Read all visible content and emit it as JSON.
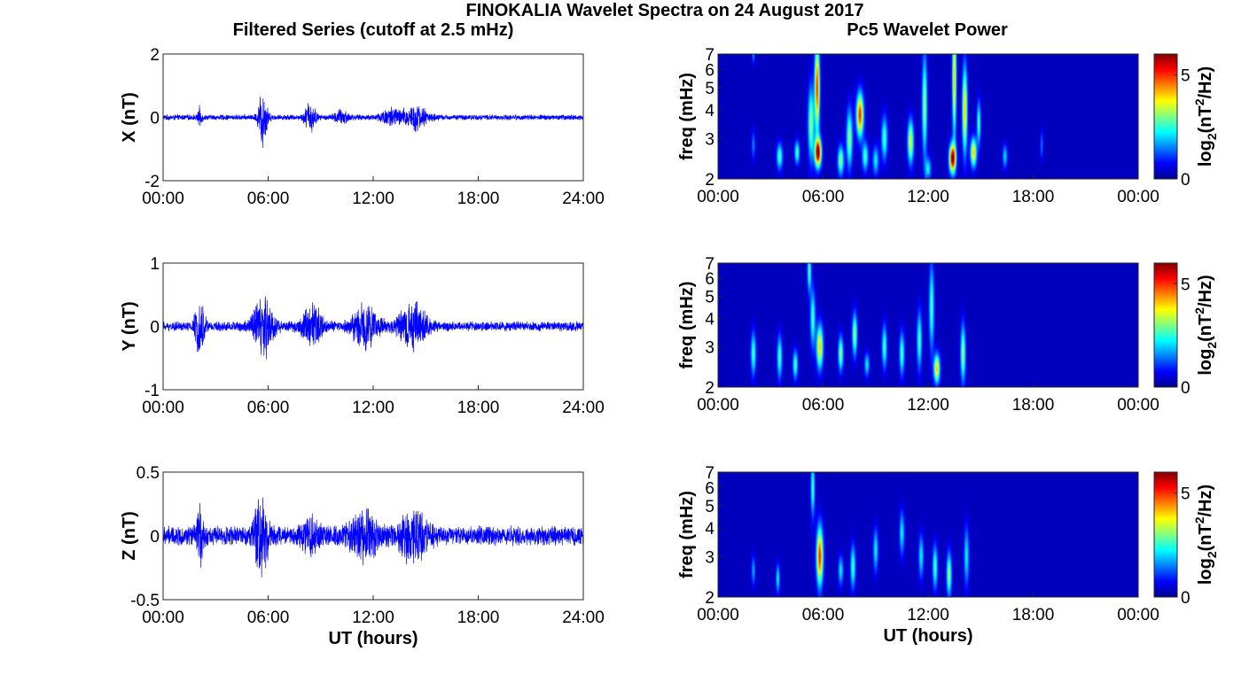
{
  "figure": {
    "title": "FINOKALIA Wavelet Spectra on 24 August 2017",
    "left_column_title": "Filtered Series (cutoff at 2.5 mHz)",
    "right_column_title": "Pc5 Wavelet Power"
  },
  "colors": {
    "trace": "#0000ff",
    "spectrum_background": "#00008f",
    "colormap": "jet"
  },
  "chart_data": [
    {
      "type": "line",
      "panel": "time-series-x",
      "xlabel": "",
      "ylabel": "X (nT)",
      "xlim": [
        0,
        24
      ],
      "ylim": [
        -2,
        2
      ],
      "xticks": [
        0,
        6,
        12,
        18,
        24
      ],
      "xtick_labels": [
        "00:00",
        "06:00",
        "12:00",
        "18:00",
        "24:00"
      ],
      "yticks": [
        2,
        0,
        -2
      ],
      "ytick_labels": [
        "2",
        "0",
        "-2"
      ],
      "noise_amplitude": 0.08,
      "bursts": [
        [
          2.1,
          0.12,
          0.25
        ],
        [
          5.7,
          0.25,
          0.9
        ],
        [
          8.4,
          0.3,
          0.45
        ],
        [
          10.2,
          0.4,
          0.2
        ],
        [
          13.0,
          0.6,
          0.25
        ],
        [
          14.4,
          0.7,
          0.35
        ]
      ]
    },
    {
      "type": "line",
      "panel": "time-series-y",
      "xlabel": "",
      "ylabel": "Y (nT)",
      "xlim": [
        0,
        24
      ],
      "ylim": [
        -1,
        1
      ],
      "xticks": [
        0,
        6,
        12,
        18,
        24
      ],
      "xtick_labels": [
        "00:00",
        "06:00",
        "12:00",
        "18:00",
        "24:00"
      ],
      "yticks": [
        1,
        0,
        -1
      ],
      "ytick_labels": [
        "1",
        "0",
        "-1"
      ],
      "noise_amplitude": 0.07,
      "bursts": [
        [
          2.1,
          0.3,
          0.35
        ],
        [
          5.7,
          0.6,
          0.45
        ],
        [
          8.5,
          0.6,
          0.3
        ],
        [
          11.5,
          0.8,
          0.3
        ],
        [
          14.3,
          0.8,
          0.32
        ]
      ]
    },
    {
      "type": "line",
      "panel": "time-series-z",
      "xlabel": "UT (hours)",
      "ylabel": "Z (nT)",
      "xlim": [
        0,
        24
      ],
      "ylim": [
        -0.5,
        0.5
      ],
      "xticks": [
        0,
        6,
        12,
        18,
        24
      ],
      "xtick_labels": [
        "00:00",
        "06:00",
        "12:00",
        "18:00",
        "24:00"
      ],
      "yticks": [
        0.5,
        0,
        -0.5
      ],
      "ytick_labels": [
        "0.5",
        "0",
        "-0.5"
      ],
      "noise_amplitude": 0.07,
      "bursts": [
        [
          2.1,
          0.2,
          0.18
        ],
        [
          5.6,
          0.4,
          0.3
        ],
        [
          8.4,
          0.5,
          0.12
        ],
        [
          11.5,
          0.8,
          0.14
        ],
        [
          14.3,
          0.8,
          0.16
        ]
      ]
    },
    {
      "type": "heatmap",
      "panel": "wavelet-power-x",
      "xlabel": "",
      "ylabel": "freq (mHz)",
      "xlim": [
        0,
        24
      ],
      "ylim": [
        2,
        7
      ],
      "yscale": "log",
      "xticks": [
        0,
        6,
        12,
        18,
        24
      ],
      "xtick_labels": [
        "00:00",
        "06:00",
        "12:00",
        "18:00",
        "00:00"
      ],
      "yticks": [
        2,
        3,
        4,
        5,
        6,
        7
      ],
      "ytick_labels": [
        "2",
        "3",
        "4",
        "5",
        "6",
        "7"
      ],
      "colorbar_label": "log2(nT^2/Hz)",
      "colorbar_range": [
        0,
        6
      ],
      "colorbar_ticks": [
        0,
        5
      ],
      "features": [
        [
          3.5,
          2.5,
          0.12,
          0.09,
          2.5
        ],
        [
          4.5,
          2.6,
          0.1,
          0.08,
          2.5
        ],
        [
          5.3,
          3.5,
          0.12,
          0.25,
          3.0
        ],
        [
          5.7,
          2.6,
          0.13,
          0.1,
          6.0
        ],
        [
          5.65,
          5.0,
          0.1,
          0.3,
          5.0
        ],
        [
          7.0,
          2.4,
          0.12,
          0.1,
          3.0
        ],
        [
          7.5,
          3.0,
          0.12,
          0.2,
          3.0
        ],
        [
          8.1,
          3.8,
          0.14,
          0.15,
          5.0
        ],
        [
          8.4,
          2.5,
          0.12,
          0.1,
          2.5
        ],
        [
          9.0,
          2.4,
          0.12,
          0.1,
          2.0
        ],
        [
          9.5,
          3.0,
          0.12,
          0.15,
          2.5
        ],
        [
          11.0,
          2.9,
          0.12,
          0.15,
          3.5
        ],
        [
          11.8,
          4.2,
          0.1,
          0.35,
          3.0
        ],
        [
          12.0,
          2.2,
          0.12,
          0.08,
          2.0
        ],
        [
          13.4,
          2.45,
          0.13,
          0.1,
          6.0
        ],
        [
          13.5,
          5.5,
          0.08,
          0.4,
          4.0
        ],
        [
          14.1,
          4.0,
          0.1,
          0.3,
          4.0
        ],
        [
          14.6,
          2.6,
          0.12,
          0.1,
          4.0
        ],
        [
          14.9,
          3.5,
          0.08,
          0.15,
          2.5
        ],
        [
          16.4,
          2.5,
          0.1,
          0.08,
          1.8
        ],
        [
          18.5,
          2.8,
          0.06,
          0.1,
          1.2
        ],
        [
          2.0,
          2.8,
          0.08,
          0.1,
          1.2
        ],
        [
          2.0,
          7.0,
          0.05,
          0.06,
          1.5
        ]
      ]
    },
    {
      "type": "heatmap",
      "panel": "wavelet-power-y",
      "xlabel": "",
      "ylabel": "freq (mHz)",
      "xlim": [
        0,
        24
      ],
      "ylim": [
        2,
        7
      ],
      "yscale": "log",
      "xticks": [
        0,
        6,
        12,
        18,
        24
      ],
      "xtick_labels": [
        "00:00",
        "06:00",
        "12:00",
        "18:00",
        "00:00"
      ],
      "yticks": [
        2,
        3,
        4,
        5,
        6,
        7
      ],
      "ytick_labels": [
        "2",
        "3",
        "4",
        "5",
        "6",
        "7"
      ],
      "colorbar_label": "log2(nT^2/Hz)",
      "colorbar_range": [
        0,
        6
      ],
      "colorbar_ticks": [
        0,
        5
      ],
      "features": [
        [
          2.0,
          2.8,
          0.1,
          0.15,
          2.5
        ],
        [
          3.5,
          2.7,
          0.1,
          0.15,
          2.5
        ],
        [
          4.4,
          2.5,
          0.1,
          0.1,
          2.5
        ],
        [
          5.2,
          6.5,
          0.08,
          0.15,
          2.5
        ],
        [
          5.4,
          4.0,
          0.1,
          0.2,
          2.5
        ],
        [
          5.8,
          3.0,
          0.13,
          0.15,
          4.0
        ],
        [
          7.0,
          2.8,
          0.1,
          0.12,
          3.0
        ],
        [
          7.8,
          3.4,
          0.1,
          0.15,
          3.0
        ],
        [
          8.5,
          2.5,
          0.1,
          0.08,
          2.0
        ],
        [
          9.5,
          3.0,
          0.1,
          0.15,
          2.5
        ],
        [
          10.5,
          2.8,
          0.1,
          0.15,
          2.5
        ],
        [
          11.5,
          3.2,
          0.1,
          0.2,
          2.5
        ],
        [
          12.2,
          4.5,
          0.1,
          0.3,
          2.5
        ],
        [
          12.5,
          2.4,
          0.12,
          0.1,
          4.0
        ],
        [
          14.0,
          2.8,
          0.1,
          0.2,
          3.0
        ]
      ]
    },
    {
      "type": "heatmap",
      "panel": "wavelet-power-z",
      "xlabel": "UT (hours)",
      "ylabel": "freq (mHz)",
      "xlim": [
        0,
        24
      ],
      "ylim": [
        2,
        7
      ],
      "yscale": "log",
      "xticks": [
        0,
        6,
        12,
        18,
        24
      ],
      "xtick_labels": [
        "00:00",
        "06:00",
        "12:00",
        "18:00",
        "00:00"
      ],
      "yticks": [
        2,
        3,
        4,
        5,
        6,
        7
      ],
      "ytick_labels": [
        "2",
        "3",
        "4",
        "5",
        "6",
        "7"
      ],
      "colorbar_label": "log2(nT^2/Hz)",
      "colorbar_range": [
        0,
        6
      ],
      "colorbar_ticks": [
        0,
        5
      ],
      "features": [
        [
          2.0,
          2.6,
          0.08,
          0.1,
          1.5
        ],
        [
          3.4,
          2.4,
          0.08,
          0.1,
          2.0
        ],
        [
          5.4,
          6.0,
          0.08,
          0.2,
          2.5
        ],
        [
          5.8,
          3.0,
          0.13,
          0.2,
          5.0
        ],
        [
          7.0,
          2.6,
          0.1,
          0.1,
          2.0
        ],
        [
          7.7,
          2.7,
          0.1,
          0.15,
          2.5
        ],
        [
          9.0,
          3.2,
          0.1,
          0.15,
          2.0
        ],
        [
          10.5,
          3.8,
          0.1,
          0.15,
          2.0
        ],
        [
          11.6,
          3.0,
          0.1,
          0.15,
          2.0
        ],
        [
          12.4,
          2.7,
          0.1,
          0.15,
          2.5
        ],
        [
          13.2,
          2.5,
          0.1,
          0.15,
          3.0
        ],
        [
          14.2,
          3.0,
          0.1,
          0.2,
          2.0
        ]
      ]
    }
  ]
}
